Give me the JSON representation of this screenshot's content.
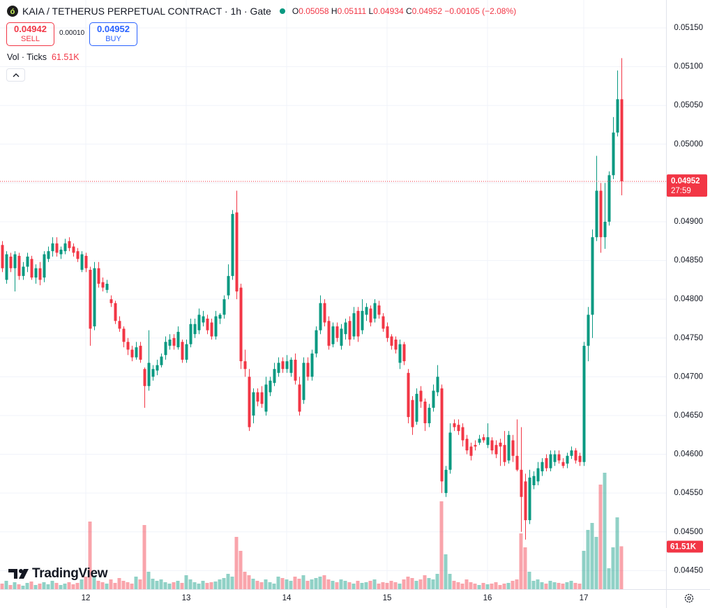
{
  "header": {
    "title": "KAIA / TETHERUS PERPETUAL CONTRACT · 1h · Gate",
    "ohlc_letters": [
      "O",
      "H",
      "L",
      "C"
    ],
    "change": "−0.00105",
    "change_pct": "(−2.08%)",
    "sell_price": 0.04942,
    "sell_label": "SELL",
    "spread": "0.00010",
    "buy_price": 0.04952,
    "buy_label": "BUY",
    "vol_label": "Vol · Ticks",
    "countdown": "27:59",
    "brand": "TradingView"
  },
  "chart_data": {
    "type": "candlestick",
    "up_color": "#089981",
    "down_color": "#f23645",
    "grid": true,
    "xlim": [
      -0.5,
      158.67
    ],
    "xticks": [
      {
        "value": 20,
        "label": "12"
      },
      {
        "value": 44,
        "label": "13"
      },
      {
        "value": 68,
        "label": "14"
      },
      {
        "value": 92,
        "label": "15"
      },
      {
        "value": 116,
        "label": "16"
      },
      {
        "value": 139,
        "label": "17"
      }
    ],
    "ylim": [
      0.04426,
      0.05186
    ],
    "yticks": [
      {
        "value": 0.0445,
        "label": "0.04450"
      },
      {
        "value": 0.045,
        "label": "0.04500"
      },
      {
        "value": 0.0455,
        "label": "0.04550"
      },
      {
        "value": 0.046,
        "label": "0.04600"
      },
      {
        "value": 0.0465,
        "label": "0.04650"
      },
      {
        "value": 0.047,
        "label": "0.04700"
      },
      {
        "value": 0.0475,
        "label": "0.04750"
      },
      {
        "value": 0.048,
        "label": "0.04800"
      },
      {
        "value": 0.0485,
        "label": "0.04850"
      },
      {
        "value": 0.049,
        "label": "0.04900"
      },
      {
        "value": 0.0495,
        "label": "0.04950"
      },
      {
        "value": 0.05,
        "label": "0.05000"
      },
      {
        "value": 0.0505,
        "label": "0.05050"
      },
      {
        "value": 0.051,
        "label": "0.05100"
      },
      {
        "value": 0.0515,
        "label": "0.05150"
      }
    ],
    "ohlc": [
      [
        0.0487,
        0.04875,
        0.04835,
        0.0484
      ],
      [
        0.04825,
        0.04862,
        0.0482,
        0.04858
      ],
      [
        0.04855,
        0.0486,
        0.04835,
        0.0484
      ],
      [
        0.0484,
        0.04862,
        0.0481,
        0.04858
      ],
      [
        0.04856,
        0.0486,
        0.04825,
        0.0483
      ],
      [
        0.0483,
        0.04848,
        0.04825,
        0.04842
      ],
      [
        0.04842,
        0.0486,
        0.04835,
        0.04855
      ],
      [
        0.04852,
        0.04856,
        0.04825,
        0.04828
      ],
      [
        0.04828,
        0.04845,
        0.0482,
        0.0484
      ],
      [
        0.0484,
        0.04848,
        0.04818,
        0.04825
      ],
      [
        0.04828,
        0.04862,
        0.04822,
        0.04858
      ],
      [
        0.04852,
        0.04868,
        0.04848,
        0.04862
      ],
      [
        0.04862,
        0.0488,
        0.04855,
        0.04872
      ],
      [
        0.04872,
        0.0488,
        0.04855,
        0.0486
      ],
      [
        0.04858,
        0.04868,
        0.04852,
        0.04864
      ],
      [
        0.04862,
        0.04878,
        0.04858,
        0.04872
      ],
      [
        0.04875,
        0.0488,
        0.04862,
        0.04866
      ],
      [
        0.04868,
        0.04872,
        0.04855,
        0.0486
      ],
      [
        0.04862,
        0.04866,
        0.04848,
        0.04852
      ],
      [
        0.04838,
        0.04862,
        0.04835,
        0.04858
      ],
      [
        0.04856,
        0.0486,
        0.04835,
        0.0484
      ],
      [
        0.04838,
        0.04842,
        0.0474,
        0.04762
      ],
      [
        0.04765,
        0.04848,
        0.0476,
        0.0484
      ],
      [
        0.0484,
        0.04848,
        0.04815,
        0.0482
      ],
      [
        0.04822,
        0.04828,
        0.0481,
        0.04815
      ],
      [
        0.04812,
        0.04825,
        0.04808,
        0.0482
      ],
      [
        0.048,
        0.04805,
        0.0479,
        0.04795
      ],
      [
        0.04795,
        0.04798,
        0.04768,
        0.04772
      ],
      [
        0.04772,
        0.04778,
        0.04758,
        0.04762
      ],
      [
        0.04762,
        0.04765,
        0.04738,
        0.04745
      ],
      [
        0.04745,
        0.0475,
        0.04728,
        0.04735
      ],
      [
        0.04735,
        0.0474,
        0.0472,
        0.04725
      ],
      [
        0.04725,
        0.04745,
        0.04722,
        0.04738
      ],
      [
        0.0474,
        0.04745,
        0.04718,
        0.04722
      ],
      [
        0.0471,
        0.04712,
        0.0466,
        0.04688
      ],
      [
        0.04688,
        0.0476,
        0.04682,
        0.04718
      ],
      [
        0.047,
        0.04715,
        0.04695,
        0.0471
      ],
      [
        0.04708,
        0.04722,
        0.04702,
        0.04715
      ],
      [
        0.04715,
        0.0473,
        0.04712,
        0.04726
      ],
      [
        0.04728,
        0.04752,
        0.04722,
        0.04745
      ],
      [
        0.0474,
        0.04755,
        0.04735,
        0.04748
      ],
      [
        0.0475,
        0.04755,
        0.04735,
        0.0474
      ],
      [
        0.04738,
        0.04765,
        0.04735,
        0.04758
      ],
      [
        0.04745,
        0.04748,
        0.04718,
        0.04722
      ],
      [
        0.04722,
        0.04748,
        0.04718,
        0.04742
      ],
      [
        0.04742,
        0.04775,
        0.04738,
        0.04768
      ],
      [
        0.04755,
        0.04775,
        0.0475,
        0.04768
      ],
      [
        0.0476,
        0.04788,
        0.04755,
        0.0478
      ],
      [
        0.0477,
        0.04785,
        0.04765,
        0.04778
      ],
      [
        0.04775,
        0.0478,
        0.04755,
        0.0476
      ],
      [
        0.0477,
        0.04775,
        0.04748,
        0.04752
      ],
      [
        0.04752,
        0.04785,
        0.04748,
        0.04778
      ],
      [
        0.04775,
        0.04782,
        0.04768,
        0.0478
      ],
      [
        0.0478,
        0.04805,
        0.04775,
        0.048
      ],
      [
        0.04805,
        0.04845,
        0.048,
        0.0483
      ],
      [
        0.0483,
        0.04915,
        0.04825,
        0.0491
      ],
      [
        0.04912,
        0.0494,
        0.048,
        0.0481
      ],
      [
        0.04815,
        0.0482,
        0.0471,
        0.0472
      ],
      [
        0.0472,
        0.04735,
        0.047,
        0.0471
      ],
      [
        0.047,
        0.0471,
        0.0463,
        0.04635
      ],
      [
        0.0465,
        0.04685,
        0.0464,
        0.0468
      ],
      [
        0.0468,
        0.04685,
        0.04662,
        0.04668
      ],
      [
        0.0468,
        0.04688,
        0.0466,
        0.04665
      ],
      [
        0.04655,
        0.047,
        0.0465,
        0.0469
      ],
      [
        0.0468,
        0.047,
        0.04675,
        0.04695
      ],
      [
        0.04692,
        0.04718,
        0.04688,
        0.0471
      ],
      [
        0.04705,
        0.04725,
        0.047,
        0.04718
      ],
      [
        0.0472,
        0.04725,
        0.04705,
        0.0471
      ],
      [
        0.0471,
        0.04728,
        0.04705,
        0.0472
      ],
      [
        0.04705,
        0.04725,
        0.047,
        0.04722
      ],
      [
        0.04722,
        0.0473,
        0.0469,
        0.04695
      ],
      [
        0.0469,
        0.047,
        0.0465,
        0.04655
      ],
      [
        0.0467,
        0.04725,
        0.04665,
        0.04718
      ],
      [
        0.04718,
        0.04725,
        0.04695,
        0.047
      ],
      [
        0.047,
        0.04735,
        0.04695,
        0.0473
      ],
      [
        0.0473,
        0.04765,
        0.04725,
        0.0476
      ],
      [
        0.0476,
        0.04805,
        0.04755,
        0.04795
      ],
      [
        0.04795,
        0.048,
        0.04765,
        0.0477
      ],
      [
        0.04772,
        0.04778,
        0.04735,
        0.0474
      ],
      [
        0.04742,
        0.0477,
        0.04738,
        0.04765
      ],
      [
        0.04765,
        0.0477,
        0.04745,
        0.0475
      ],
      [
        0.0474,
        0.04768,
        0.04735,
        0.04762
      ],
      [
        0.04755,
        0.04775,
        0.04748,
        0.0477
      ],
      [
        0.04772,
        0.04778,
        0.0474,
        0.04748
      ],
      [
        0.04752,
        0.0479,
        0.04748,
        0.04782
      ],
      [
        0.04785,
        0.0479,
        0.04745,
        0.04752
      ],
      [
        0.0476,
        0.048,
        0.04755,
        0.04785
      ],
      [
        0.0478,
        0.04795,
        0.04772,
        0.0479
      ],
      [
        0.04788,
        0.04792,
        0.04765,
        0.0477
      ],
      [
        0.04775,
        0.048,
        0.0477,
        0.04795
      ],
      [
        0.04792,
        0.04798,
        0.04775,
        0.0478
      ],
      [
        0.04778,
        0.04782,
        0.04758,
        0.04762
      ],
      [
        0.04765,
        0.0477,
        0.04745,
        0.0475
      ],
      [
        0.04752,
        0.04755,
        0.04735,
        0.0474
      ],
      [
        0.04748,
        0.04752,
        0.0473,
        0.04735
      ],
      [
        0.04718,
        0.04748,
        0.0471,
        0.04742
      ],
      [
        0.04742,
        0.04745,
        0.04715,
        0.0472
      ],
      [
        0.04705,
        0.0471,
        0.0464,
        0.04648
      ],
      [
        0.0467,
        0.04675,
        0.04625,
        0.04635
      ],
      [
        0.04642,
        0.04685,
        0.04638,
        0.04678
      ],
      [
        0.04682,
        0.04688,
        0.0466,
        0.04668
      ],
      [
        0.04668,
        0.04672,
        0.0463,
        0.0464
      ],
      [
        0.0464,
        0.04665,
        0.04635,
        0.0466
      ],
      [
        0.0466,
        0.0469,
        0.04655,
        0.04682
      ],
      [
        0.0468,
        0.04715,
        0.04675,
        0.047
      ],
      [
        0.04685,
        0.0469,
        0.0455,
        0.04565
      ],
      [
        0.0455,
        0.04585,
        0.04545,
        0.0458
      ],
      [
        0.0458,
        0.0464,
        0.04575,
        0.04628
      ],
      [
        0.0464,
        0.04645,
        0.0463,
        0.04635
      ],
      [
        0.04638,
        0.04645,
        0.04625,
        0.0463
      ],
      [
        0.04635,
        0.0464,
        0.0461,
        0.04618
      ],
      [
        0.0462,
        0.04625,
        0.046,
        0.04605
      ],
      [
        0.0461,
        0.04615,
        0.04592,
        0.04598
      ],
      [
        0.04612,
        0.04618,
        0.04605,
        0.0461
      ],
      [
        0.04615,
        0.04625,
        0.04612,
        0.0462
      ],
      [
        0.04622,
        0.04626,
        0.04615,
        0.04618
      ],
      [
        0.04612,
        0.0464,
        0.04608,
        0.04622
      ],
      [
        0.04618,
        0.04622,
        0.046,
        0.04605
      ],
      [
        0.04612,
        0.04618,
        0.04595,
        0.046
      ],
      [
        0.04615,
        0.0462,
        0.04585,
        0.0461
      ],
      [
        0.04612,
        0.0463,
        0.04585,
        0.0459
      ],
      [
        0.04592,
        0.0463,
        0.04588,
        0.04625
      ],
      [
        0.04618,
        0.04625,
        0.0459,
        0.04598
      ],
      [
        0.04598,
        0.04645,
        0.04578,
        0.0458
      ],
      [
        0.0458,
        0.04635,
        0.045,
        0.04545
      ],
      [
        0.04565,
        0.04575,
        0.0449,
        0.04515
      ],
      [
        0.04515,
        0.0458,
        0.0451,
        0.0457
      ],
      [
        0.0456,
        0.04578,
        0.04555,
        0.04572
      ],
      [
        0.04565,
        0.0459,
        0.0456,
        0.04582
      ],
      [
        0.04578,
        0.04595,
        0.04572,
        0.0459
      ],
      [
        0.04595,
        0.046,
        0.04578,
        0.04582
      ],
      [
        0.04582,
        0.04605,
        0.04578,
        0.046
      ],
      [
        0.0459,
        0.04605,
        0.04585,
        0.046
      ],
      [
        0.046,
        0.04605,
        0.04588,
        0.04592
      ],
      [
        0.0459,
        0.04595,
        0.04582,
        0.04585
      ],
      [
        0.04588,
        0.04602,
        0.04582,
        0.04598
      ],
      [
        0.04598,
        0.0461,
        0.04594,
        0.04605
      ],
      [
        0.04605,
        0.04608,
        0.04588,
        0.04592
      ],
      [
        0.04598,
        0.04602,
        0.04585,
        0.0459
      ],
      [
        0.0459,
        0.04745,
        0.04585,
        0.0474
      ],
      [
        0.0474,
        0.0479,
        0.0472,
        0.0478
      ],
      [
        0.0478,
        0.0489,
        0.0475,
        0.0488
      ],
      [
        0.0488,
        0.04985,
        0.04875,
        0.0494
      ],
      [
        0.0494,
        0.0495,
        0.0486,
        0.0488
      ],
      [
        0.0488,
        0.0495,
        0.04865,
        0.049
      ],
      [
        0.049,
        0.04965,
        0.04895,
        0.0496
      ],
      [
        0.0496,
        0.05035,
        0.04955,
        0.05015
      ],
      [
        0.05015,
        0.05095,
        0.0501,
        0.05058
      ],
      [
        0.05058,
        0.05111,
        0.04934,
        0.04952
      ]
    ],
    "volume": {
      "vlim": [
        0,
        200000
      ],
      "last_label": "61.51K",
      "values": [
        8000,
        12000,
        6000,
        10000,
        7000,
        5000,
        9000,
        11000,
        6000,
        8000,
        10000,
        7000,
        12000,
        9000,
        6000,
        8000,
        10000,
        7000,
        9000,
        14000,
        18000,
        97000,
        20000,
        12000,
        10000,
        8000,
        14000,
        9000,
        16000,
        12000,
        10000,
        8000,
        18000,
        14000,
        92000,
        25000,
        15000,
        12000,
        14000,
        10000,
        8000,
        10000,
        12000,
        9000,
        20000,
        14000,
        10000,
        8000,
        12000,
        9000,
        10000,
        11000,
        14000,
        16000,
        22000,
        18000,
        75000,
        55000,
        25000,
        20000,
        15000,
        12000,
        10000,
        14000,
        10000,
        8000,
        18000,
        16000,
        14000,
        12000,
        18000,
        15000,
        20000,
        12000,
        14000,
        16000,
        18000,
        20000,
        14000,
        12000,
        10000,
        14000,
        12000,
        10000,
        8000,
        12000,
        9000,
        10000,
        12000,
        14000,
        8000,
        10000,
        9000,
        12000,
        10000,
        8000,
        14000,
        18000,
        16000,
        12000,
        14000,
        20000,
        16000,
        14000,
        22000,
        126000,
        50000,
        22000,
        12000,
        10000,
        8000,
        14000,
        10000,
        8000,
        6000,
        9000,
        7000,
        8000,
        10000,
        6000,
        8000,
        9000,
        12000,
        14000,
        80000,
        60000,
        25000,
        12000,
        14000,
        10000,
        8000,
        12000,
        10000,
        9000,
        8000,
        10000,
        12000,
        9000,
        8000,
        55000,
        85000,
        95000,
        75000,
        150000,
        167000,
        30000,
        60000,
        103000,
        61510
      ]
    }
  }
}
